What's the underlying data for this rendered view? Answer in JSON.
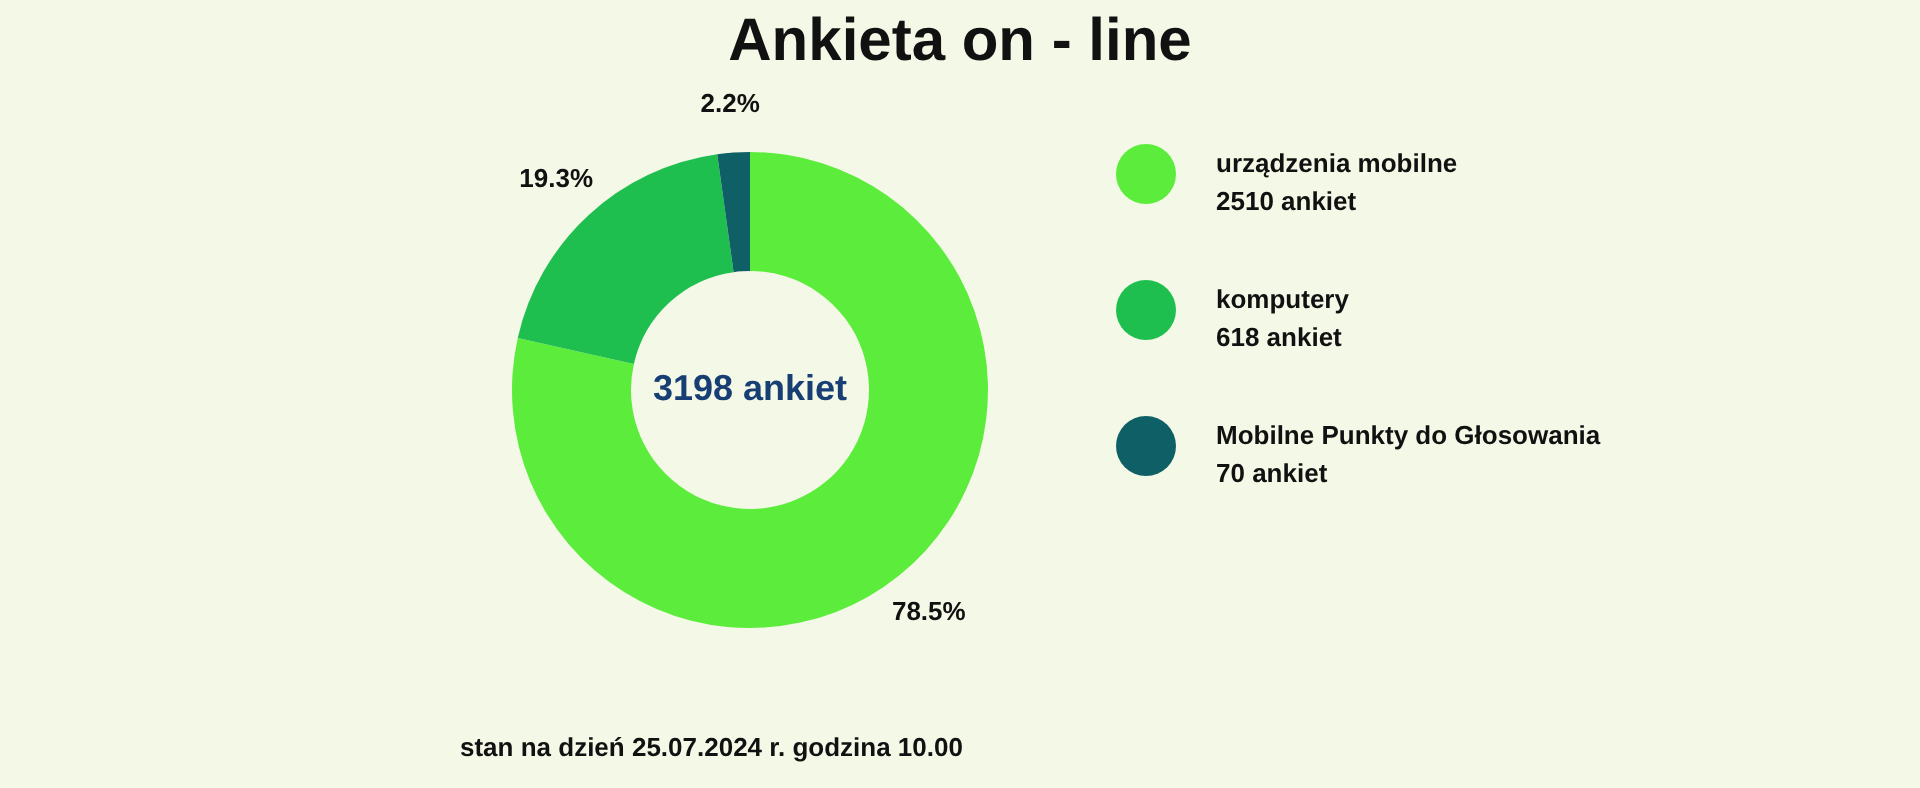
{
  "chart_data": {
    "type": "donut",
    "title": "Ankieta on - line",
    "categories": [
      "urządzenia mobilne\n2510 ankiet",
      "komputery\n618 ankiet",
      "Mobilne Punkty do Głosowania\n70 ankiet"
    ],
    "values": [
      78.5,
      19.3,
      2.2
    ],
    "colors": [
      "#5cec3c",
      "#1fbf4f",
      "#0f5f66"
    ],
    "value_labels": [
      "78.5%",
      "19.3%",
      "2.2%"
    ],
    "data_labels": true,
    "annotations": [
      "3198 ankiet",
      "stan na dzień 25.07.2024 r. godzina 10.00"
    ],
    "legend": "right"
  }
}
